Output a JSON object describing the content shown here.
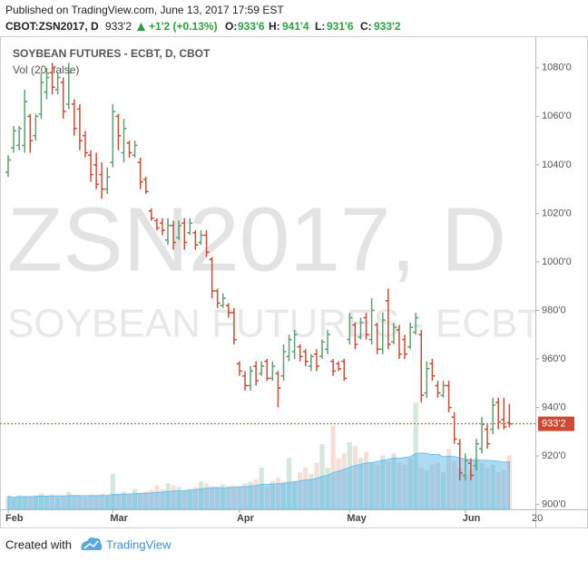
{
  "header": {
    "published": "Published on TradingView.com, June 13, 2017 17:59 EST",
    "symbol": "CBOT:ZSN2017, D",
    "last": "933'2",
    "change": "+1'2 (+0.13%)",
    "ohlc": [
      {
        "label": "O:",
        "value": "933'6"
      },
      {
        "label": "H:",
        "value": "941'4"
      },
      {
        "label": "L:",
        "value": "931'6"
      },
      {
        "label": "C:",
        "value": "933'2"
      }
    ]
  },
  "chart_data": {
    "type": "ohlc",
    "title": "SOYBEAN FUTURES - ECBT, D, CBOT",
    "indicator": "Vol (20, false)",
    "watermark": [
      "ZSN2017, D",
      "SOYBEAN FUTURES - ECBT"
    ],
    "categories": [
      "Feb",
      null,
      null,
      null,
      null,
      null,
      null,
      null,
      null,
      null,
      null,
      null,
      null,
      null,
      null,
      null,
      null,
      null,
      null,
      "Mar",
      null,
      null,
      null,
      null,
      null,
      null,
      null,
      null,
      null,
      null,
      null,
      null,
      null,
      null,
      null,
      null,
      null,
      null,
      null,
      null,
      null,
      null,
      "Apr",
      null,
      null,
      null,
      null,
      null,
      null,
      null,
      null,
      null,
      null,
      null,
      null,
      null,
      null,
      null,
      null,
      null,
      null,
      null,
      "May",
      null,
      null,
      null,
      null,
      null,
      null,
      null,
      null,
      null,
      null,
      null,
      null,
      null,
      null,
      null,
      null,
      null,
      null,
      null,
      null,
      "Jun",
      null,
      null,
      null,
      null,
      null,
      null,
      null,
      null
    ],
    "x_edge_label": "20",
    "open": [
      1037,
      1047,
      1048,
      1048,
      1060,
      1052,
      1061,
      1070,
      1078,
      1071,
      1074,
      1065,
      1065,
      1063,
      1052,
      1044,
      1040,
      1036,
      1030,
      1041,
      1060,
      1045,
      1049,
      1044,
      1041,
      1034,
      1021,
      1017,
      1016,
      1009,
      1015,
      1010,
      1016,
      1012,
      1012,
      1008,
      1011,
      1001,
      988,
      982,
      982,
      979,
      958,
      953,
      949,
      957,
      954,
      959,
      952,
      954,
      953,
      961,
      963,
      965,
      963,
      957,
      962,
      961,
      964,
      959,
      958,
      959,
      968,
      974,
      969,
      977,
      968,
      974,
      964,
      984,
      967,
      972,
      968,
      965,
      971,
      970,
      946,
      958,
      949,
      945,
      949,
      936,
      925,
      912,
      917,
      916,
      923,
      931,
      931,
      942,
      935,
      933.75
    ],
    "high": [
      1044,
      1056,
      1056,
      1071,
      1061,
      1061,
      1078,
      1080,
      1082,
      1078,
      1076,
      1082,
      1067,
      1065,
      1054,
      1046,
      1045,
      1041,
      1039,
      1065,
      1061,
      1059,
      1050,
      1050,
      1043,
      1035,
      1022,
      1018,
      1018,
      1018,
      1017,
      1017,
      1018,
      1018,
      1013,
      1013,
      1013,
      1002,
      989,
      987,
      983,
      981,
      959,
      955,
      957,
      959,
      959,
      960,
      959,
      955,
      966,
      970,
      972,
      966,
      964,
      962,
      964,
      968,
      972,
      960,
      959,
      960,
      979,
      975,
      977,
      979,
      985,
      975,
      979,
      989,
      975,
      974,
      970,
      975,
      979,
      972,
      959,
      960,
      951,
      951,
      951,
      938,
      927,
      921,
      919,
      927,
      936,
      933,
      944,
      944,
      944,
      941.5
    ],
    "low": [
      1035,
      1045,
      1046,
      1045,
      1045,
      1050,
      1059,
      1067,
      1069,
      1069,
      1059,
      1063,
      1052,
      1046,
      1043,
      1033,
      1030,
      1026,
      1028,
      1039,
      1046,
      1041,
      1043,
      1043,
      1030,
      1028,
      1017,
      1013,
      1011,
      1007,
      1005,
      1009,
      1005,
      1011,
      1005,
      1007,
      1002,
      985,
      981,
      981,
      977,
      966,
      953,
      947,
      947,
      949,
      953,
      951,
      951,
      940,
      951,
      959,
      960,
      959,
      957,
      955,
      955,
      960,
      962,
      953,
      955,
      951,
      966,
      964,
      968,
      968,
      966,
      962,
      962,
      964,
      966,
      960,
      960,
      964,
      970,
      942,
      944,
      951,
      944,
      944,
      938,
      925,
      910,
      910,
      910,
      914,
      921,
      923,
      929,
      931,
      931,
      931.75
    ],
    "close": [
      1042,
      1054,
      1055,
      1066,
      1050,
      1060,
      1074,
      1076,
      1072,
      1076,
      1062,
      1078,
      1055,
      1050,
      1045,
      1036,
      1032,
      1030,
      1035,
      1062,
      1052,
      1055,
      1045,
      1048,
      1033,
      1029,
      1018,
      1014,
      1013,
      1015,
      1008,
      1015,
      1008,
      1016,
      1007,
      1011,
      1004,
      988,
      983,
      985,
      979,
      968,
      955,
      949,
      955,
      951,
      957,
      952,
      957,
      948,
      963,
      968,
      970,
      961,
      959,
      961,
      957,
      967,
      970,
      955,
      956,
      952,
      977,
      966,
      975,
      970,
      980,
      964,
      976,
      966,
      973,
      962,
      962,
      973,
      977,
      945,
      956,
      953,
      946,
      949,
      940,
      927,
      913,
      918,
      912,
      925,
      933,
      925,
      941,
      934,
      932,
      933.25
    ],
    "volume": [
      14,
      12,
      15,
      14,
      13,
      15,
      17,
      14,
      16,
      13,
      15,
      19,
      15,
      14,
      13,
      16,
      15,
      17,
      15,
      38,
      16,
      19,
      17,
      22,
      18,
      19,
      21,
      26,
      22,
      28,
      26,
      24,
      20,
      22,
      24,
      30,
      28,
      25,
      24,
      27,
      25,
      26,
      25,
      28,
      30,
      32,
      45,
      25,
      30,
      34,
      30,
      55,
      30,
      40,
      45,
      38,
      50,
      70,
      45,
      90,
      55,
      60,
      72,
      68,
      55,
      62,
      50,
      48,
      58,
      52,
      60,
      50,
      48,
      55,
      115,
      45,
      42,
      48,
      50,
      40,
      65,
      52,
      45,
      38,
      42,
      55,
      50,
      45,
      48,
      40,
      42,
      58
    ],
    "up_color": "#5d9e74",
    "down_color": "#cc4b37",
    "ylim": [
      898,
      1093
    ],
    "yticks": [
      {
        "value": 900,
        "label": "900'0"
      },
      {
        "value": 920,
        "label": "920'0"
      },
      {
        "value": 940,
        "label": "940'0"
      },
      {
        "value": 960,
        "label": "960'0"
      },
      {
        "value": 980,
        "label": "980'0"
      },
      {
        "value": 1000,
        "label": "1000'0"
      },
      {
        "value": 1020,
        "label": "1020'0"
      },
      {
        "value": 1040,
        "label": "1040'0"
      },
      {
        "value": 1060,
        "label": "1060'0"
      },
      {
        "value": 1080,
        "label": "1080'0"
      }
    ],
    "last_price": {
      "value": 933.25,
      "label": "933'2"
    },
    "grid": false
  },
  "footer": {
    "created": "Created with",
    "brand": "TradingView"
  }
}
